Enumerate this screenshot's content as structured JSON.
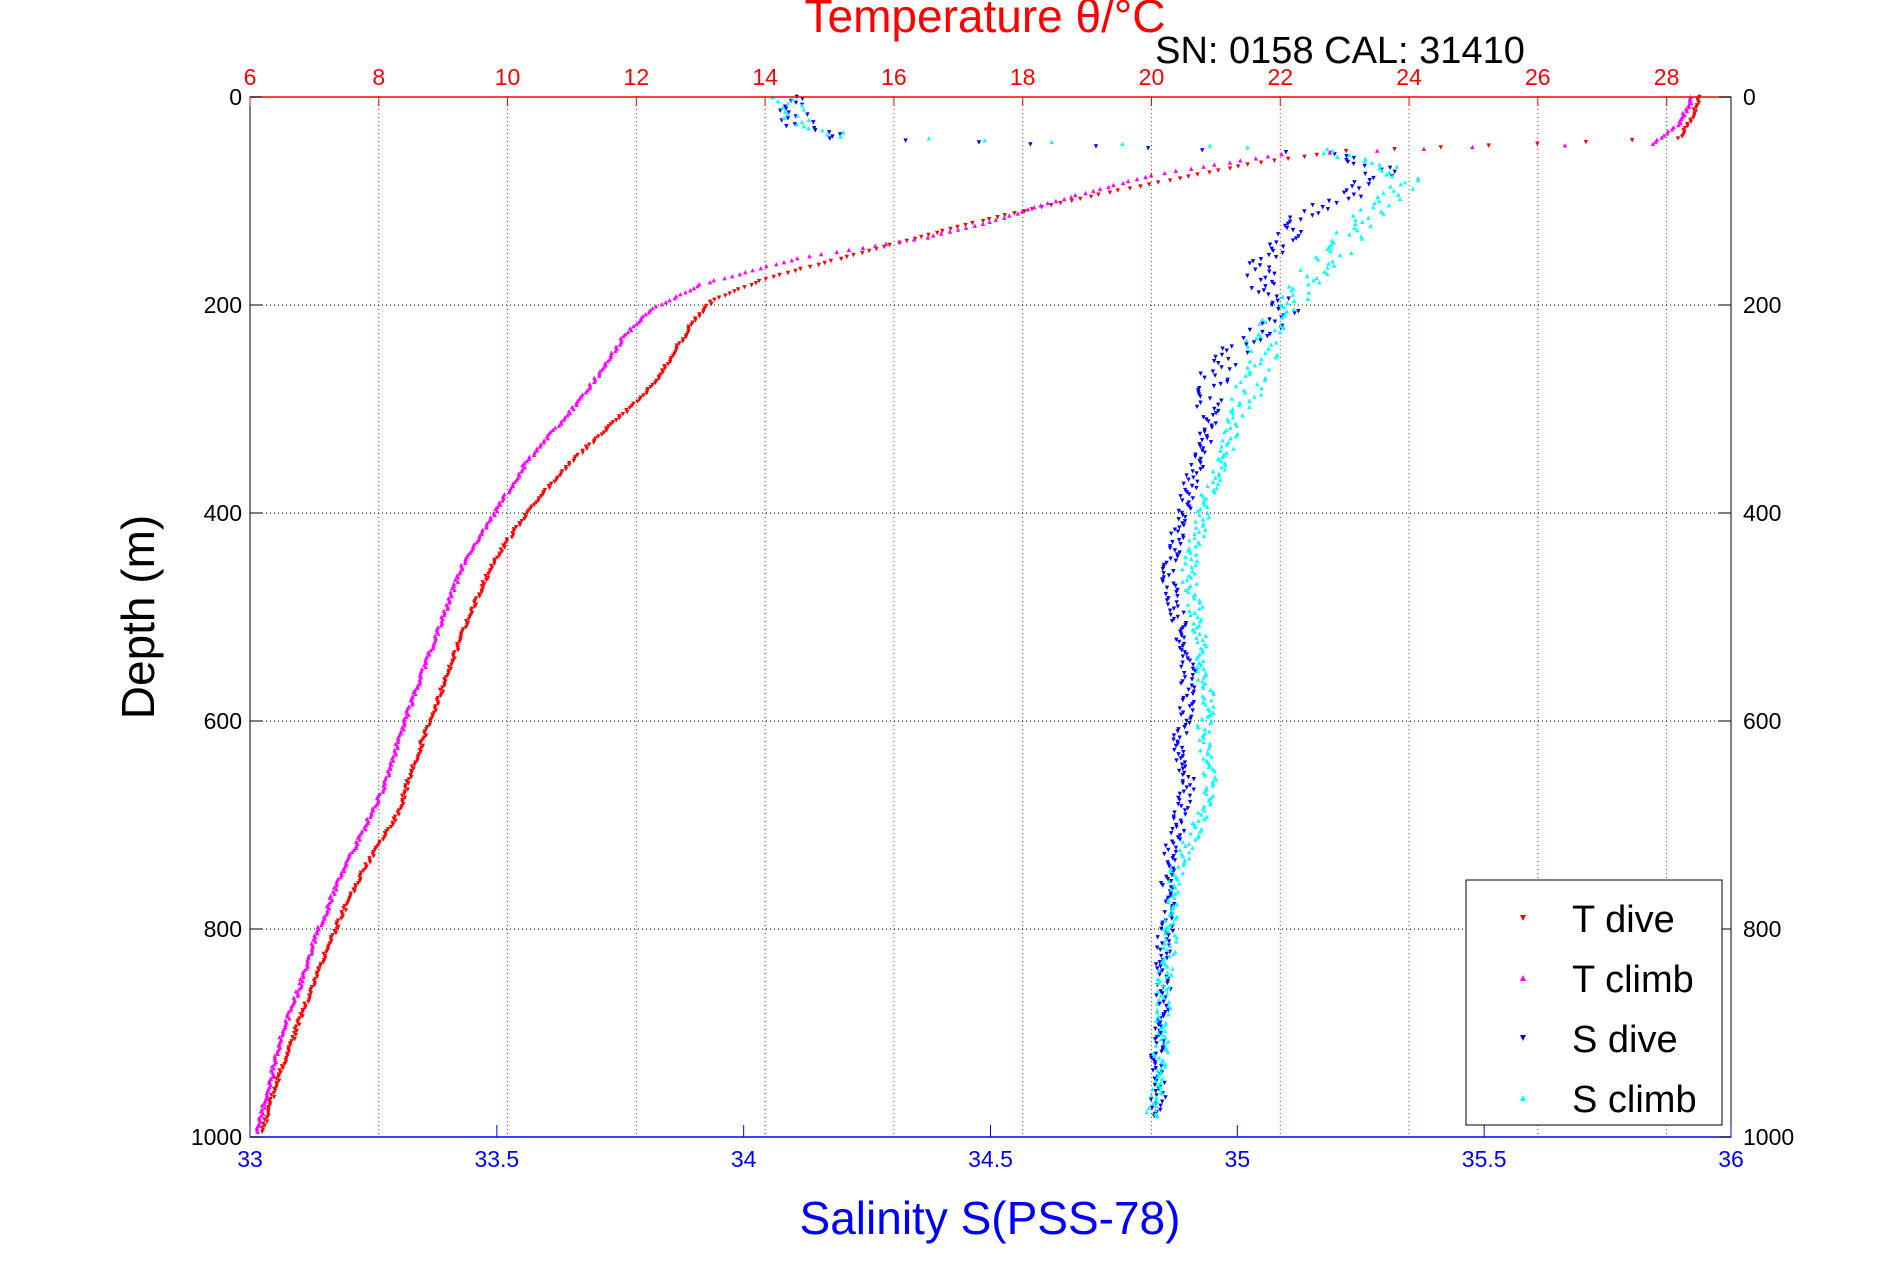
{
  "chart_data": {
    "type": "scatter",
    "title": "Temperature θ/°C",
    "annotation": "SN: 0158  CAL: 31410",
    "ylabel": "Depth (m)",
    "xlabel": "Salinity S(PSS-78)",
    "depth_axis": {
      "range": [
        0,
        1000
      ],
      "reversed": true,
      "ticks": [
        0,
        200,
        400,
        600,
        800,
        1000
      ],
      "tick_labels": [
        "0",
        "200",
        "400",
        "600",
        "800",
        "1000"
      ]
    },
    "temperature_axis": {
      "range": [
        6,
        29
      ],
      "position": "top",
      "ticks": [
        6,
        8,
        10,
        12,
        14,
        16,
        18,
        20,
        22,
        24,
        26,
        28
      ],
      "tick_labels": [
        "6",
        "8",
        "10",
        "12",
        "14",
        "16",
        "18",
        "20",
        "22",
        "24",
        "26",
        "28"
      ],
      "color": "#ff0000",
      "grid": true
    },
    "salinity_axis": {
      "range": [
        33,
        36
      ],
      "position": "bottom",
      "ticks": [
        33,
        33.5,
        34,
        34.5,
        35,
        35.5,
        36
      ],
      "tick_labels": [
        "33",
        "33.5",
        "34",
        "34.5",
        "35",
        "35.5",
        "36"
      ],
      "color": "#0000ff"
    },
    "legend": {
      "position": "bottom-right",
      "entries": [
        "T dive",
        "T climb",
        "S dive",
        "S climb"
      ]
    },
    "series": [
      {
        "name": "T dive",
        "variable": "temperature",
        "marker": "triangle-down",
        "color": "#ff0000",
        "points": [
          [
            28.5,
            0
          ],
          [
            28.4,
            20
          ],
          [
            28.2,
            40
          ],
          [
            26.0,
            45
          ],
          [
            23.0,
            52
          ],
          [
            21.5,
            65
          ],
          [
            19.5,
            90
          ],
          [
            18.0,
            110
          ],
          [
            17.0,
            125
          ],
          [
            15.5,
            150
          ],
          [
            14.0,
            175
          ],
          [
            13.2,
            195
          ],
          [
            12.9,
            215
          ],
          [
            12.6,
            245
          ],
          [
            12.3,
            275
          ],
          [
            11.8,
            305
          ],
          [
            11.0,
            350
          ],
          [
            10.3,
            400
          ],
          [
            9.8,
            445
          ],
          [
            9.4,
            500
          ],
          [
            9.1,
            550
          ],
          [
            8.8,
            600
          ],
          [
            8.5,
            650
          ],
          [
            8.3,
            690
          ],
          [
            7.8,
            740
          ],
          [
            7.4,
            790
          ],
          [
            7.0,
            850
          ],
          [
            6.7,
            900
          ],
          [
            6.4,
            950
          ],
          [
            6.2,
            995
          ]
        ]
      },
      {
        "name": "T climb",
        "variable": "temperature",
        "marker": "triangle-up",
        "color": "#ff00ff",
        "points": [
          [
            28.4,
            0
          ],
          [
            28.2,
            25
          ],
          [
            27.8,
            45
          ],
          [
            25.0,
            48
          ],
          [
            22.0,
            55
          ],
          [
            20.0,
            75
          ],
          [
            18.5,
            100
          ],
          [
            17.5,
            120
          ],
          [
            16.5,
            135
          ],
          [
            14.5,
            155
          ],
          [
            13.0,
            180
          ],
          [
            12.2,
            205
          ],
          [
            11.8,
            230
          ],
          [
            11.5,
            260
          ],
          [
            11.0,
            300
          ],
          [
            10.3,
            350
          ],
          [
            9.8,
            400
          ],
          [
            9.3,
            450
          ],
          [
            9.0,
            500
          ],
          [
            8.7,
            550
          ],
          [
            8.4,
            600
          ],
          [
            8.1,
            660
          ],
          [
            7.8,
            700
          ],
          [
            7.4,
            750
          ],
          [
            7.0,
            810
          ],
          [
            6.8,
            850
          ],
          [
            6.5,
            900
          ],
          [
            6.3,
            950
          ],
          [
            6.1,
            995
          ]
        ]
      },
      {
        "name": "S dive",
        "variable": "salinity",
        "marker": "triangle-down",
        "color": "#0000ff",
        "points": [
          [
            34.1,
            0
          ],
          [
            34.1,
            15
          ],
          [
            34.12,
            30
          ],
          [
            34.2,
            40
          ],
          [
            35.2,
            55
          ],
          [
            35.3,
            70
          ],
          [
            35.25,
            90
          ],
          [
            35.15,
            110
          ],
          [
            35.1,
            130
          ],
          [
            35.05,
            160
          ],
          [
            35.05,
            180
          ],
          [
            35.1,
            210
          ],
          [
            35.0,
            240
          ],
          [
            34.95,
            270
          ],
          [
            34.95,
            300
          ],
          [
            34.93,
            340
          ],
          [
            34.9,
            380
          ],
          [
            34.88,
            420
          ],
          [
            34.86,
            460
          ],
          [
            34.88,
            500
          ],
          [
            34.9,
            540
          ],
          [
            34.9,
            580
          ],
          [
            34.88,
            620
          ],
          [
            34.9,
            660
          ],
          [
            34.88,
            700
          ],
          [
            34.86,
            740
          ],
          [
            34.86,
            780
          ],
          [
            34.85,
            820
          ],
          [
            34.85,
            860
          ],
          [
            34.84,
            900
          ],
          [
            34.84,
            940
          ],
          [
            34.84,
            980
          ]
        ]
      },
      {
        "name": "S climb",
        "variable": "salinity",
        "marker": "triangle-up",
        "color": "#00ffff",
        "points": [
          [
            34.08,
            0
          ],
          [
            34.1,
            20
          ],
          [
            34.2,
            38
          ],
          [
            34.8,
            45
          ],
          [
            35.15,
            50
          ],
          [
            35.3,
            65
          ],
          [
            35.35,
            80
          ],
          [
            35.3,
            100
          ],
          [
            35.25,
            120
          ],
          [
            35.2,
            150
          ],
          [
            35.15,
            170
          ],
          [
            35.1,
            200
          ],
          [
            35.05,
            230
          ],
          [
            35.05,
            260
          ],
          [
            35.0,
            300
          ],
          [
            34.98,
            340
          ],
          [
            34.94,
            380
          ],
          [
            34.92,
            420
          ],
          [
            34.9,
            460
          ],
          [
            34.92,
            500
          ],
          [
            34.93,
            540
          ],
          [
            34.94,
            580
          ],
          [
            34.93,
            620
          ],
          [
            34.95,
            660
          ],
          [
            34.92,
            700
          ],
          [
            34.88,
            740
          ],
          [
            34.87,
            780
          ],
          [
            34.86,
            820
          ],
          [
            34.85,
            860
          ],
          [
            34.85,
            900
          ],
          [
            34.84,
            940
          ],
          [
            34.83,
            980
          ]
        ]
      }
    ]
  }
}
